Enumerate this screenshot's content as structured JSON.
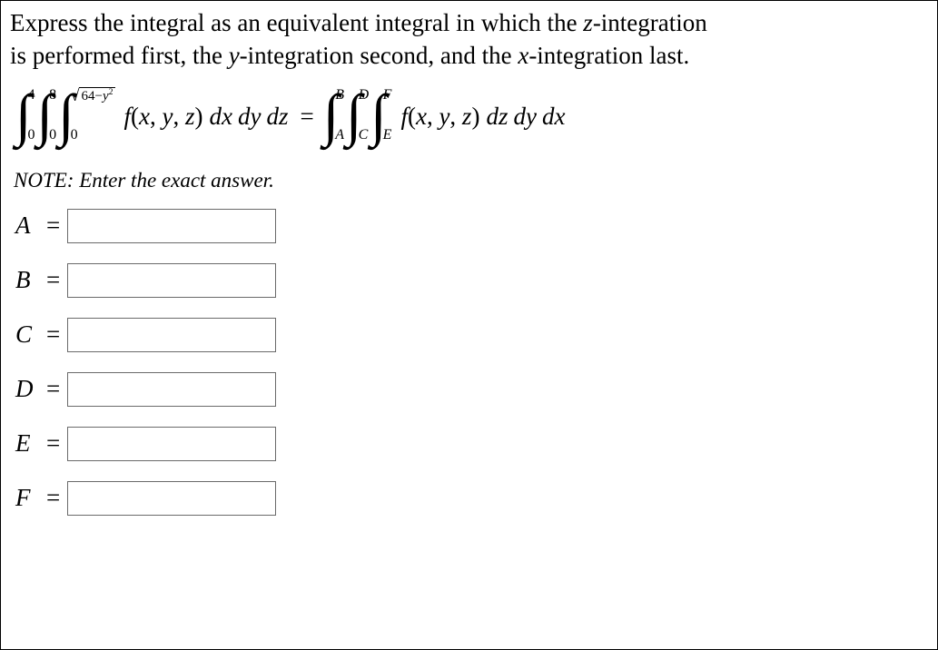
{
  "prompt": {
    "line1_a": "Express the integral as an equivalent integral in which the ",
    "zvar": "z",
    "line1_b": "-integration",
    "line2_a": "is performed first, the ",
    "yvar": "y",
    "line2_b": "-integration second, and the ",
    "xvar": "x",
    "line2_c": "-integration last."
  },
  "lhs": {
    "i1": {
      "lower": "0",
      "upper": "4"
    },
    "i2": {
      "lower": "0",
      "upper": "8"
    },
    "i3_lower": "0",
    "i3_upper_inside": "64−",
    "i3_upper_var": "y",
    "func_name": "f",
    "args_open": "(",
    "argx": "x",
    "sep1": ", ",
    "argy": "y",
    "sep2": ", ",
    "argz": "z",
    "args_close": ")",
    "d1": "dx",
    "d2": "dy",
    "d3": "dz"
  },
  "eq": "=",
  "rhs": {
    "i1": {
      "lower": "A",
      "upper": "B"
    },
    "i2": {
      "lower": "C",
      "upper": "D"
    },
    "i3": {
      "lower": "E",
      "upper": "F"
    },
    "func_name": "f",
    "args_open": "(",
    "argx": "x",
    "sep1": ", ",
    "argy": "y",
    "sep2": ", ",
    "argz": "z",
    "args_close": ")",
    "d1": "dz",
    "d2": "dy",
    "d3": "dx"
  },
  "note": "NOTE: Enter the exact answer.",
  "answers": [
    {
      "label": "A",
      "value": ""
    },
    {
      "label": "B",
      "value": ""
    },
    {
      "label": "C",
      "value": ""
    },
    {
      "label": "D",
      "value": ""
    },
    {
      "label": "E",
      "value": ""
    },
    {
      "label": "F",
      "value": ""
    }
  ],
  "eq_sign": "="
}
